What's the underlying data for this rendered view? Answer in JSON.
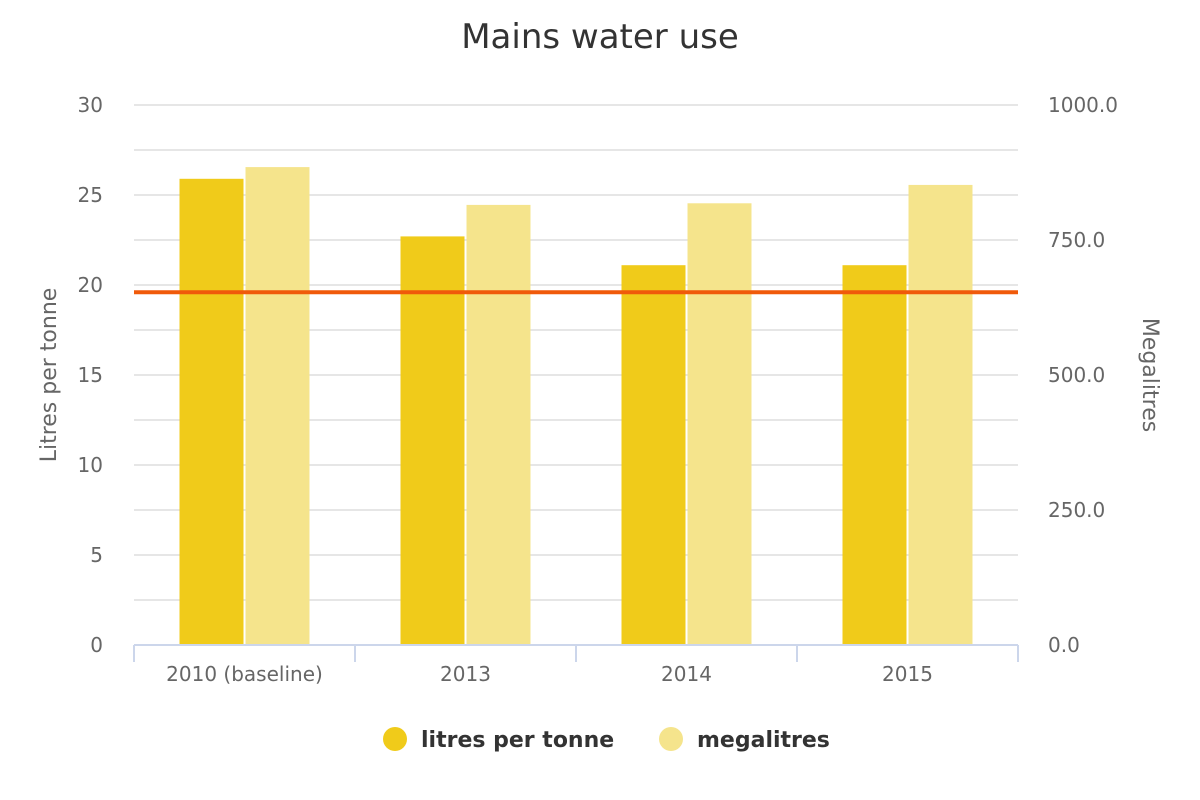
{
  "chart_data": {
    "type": "bar",
    "title": "Mains water use",
    "categories": [
      "2010 (baseline)",
      "2013",
      "2014",
      "2015"
    ],
    "y_left": {
      "label": "Litres per tonne",
      "range": [
        0,
        30
      ],
      "ticks": [
        "0",
        "5",
        "10",
        "15",
        "20",
        "25",
        "30"
      ],
      "tick_values": [
        0,
        5,
        10,
        15,
        20,
        25,
        30
      ]
    },
    "y_right": {
      "label": "Megalitres",
      "range": [
        0,
        1000
      ],
      "ticks": [
        "0.0",
        "250.0",
        "500.0",
        "750.0",
        "1000.0"
      ],
      "tick_values": [
        0,
        250,
        500,
        750,
        1000
      ]
    },
    "series": [
      {
        "name": "litres per tonne",
        "axis": "left",
        "color": "#f0cb1a",
        "values": [
          25.9,
          22.7,
          21.1,
          21.1
        ]
      },
      {
        "name": "megalitres",
        "axis": "right",
        "color": "#f5e48c",
        "values": [
          885,
          815,
          818,
          852
        ]
      }
    ],
    "target_line": {
      "axis": "left",
      "value": 19.6,
      "color": "#f05a0a"
    },
    "grid": true,
    "legend": "bottom-center"
  }
}
